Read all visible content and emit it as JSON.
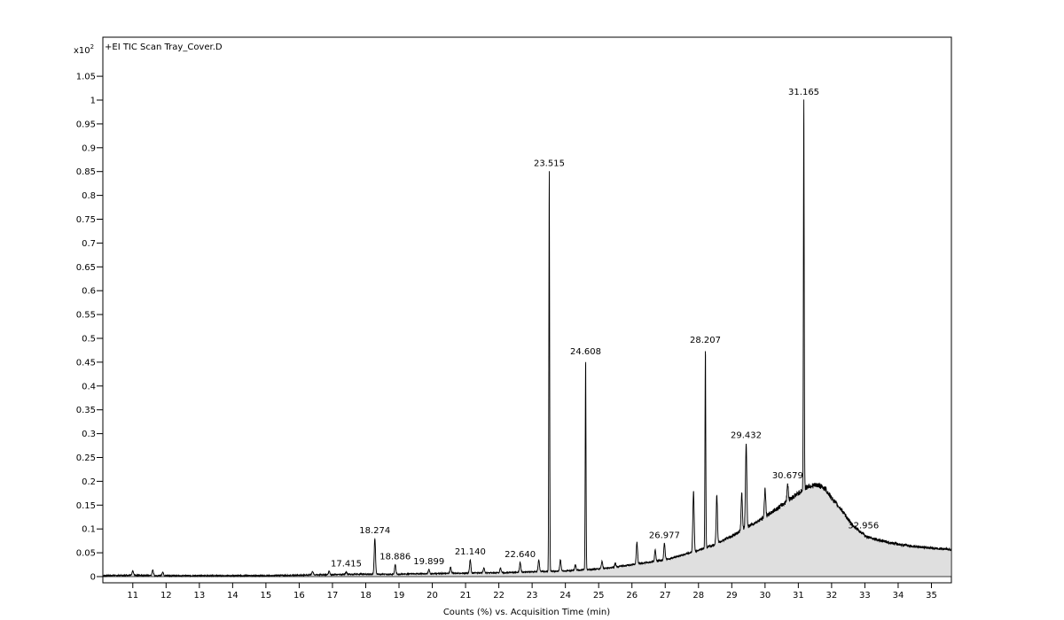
{
  "chart_data": {
    "type": "line",
    "trace_title": "+EI TIC Scan Tray_Cover.D",
    "xlabel": "Counts (%) vs. Acquisition Time (min)",
    "y_multiplier_base": "x10",
    "y_multiplier_exp": "2",
    "xlim": [
      10.1,
      35.6
    ],
    "ylim": [
      0,
      1.1
    ],
    "x_ticks": [
      "11",
      "12",
      "13",
      "14",
      "15",
      "16",
      "17",
      "18",
      "19",
      "20",
      "21",
      "22",
      "23",
      "24",
      "25",
      "26",
      "27",
      "28",
      "29",
      "30",
      "31",
      "32",
      "33",
      "34",
      "35"
    ],
    "y_ticks": [
      "0",
      "0.05",
      "0.1",
      "0.15",
      "0.2",
      "0.25",
      "0.3",
      "0.35",
      "0.4",
      "0.45",
      "0.5",
      "0.55",
      "0.6",
      "0.65",
      "0.7",
      "0.75",
      "0.8",
      "0.85",
      "0.9",
      "0.95",
      "1",
      "1.05"
    ],
    "series": [
      {
        "x": [
          10.1,
          11.0,
          12.0,
          13.0,
          14.0,
          15.0,
          16.0,
          16.5,
          17.0,
          17.5,
          18.0,
          18.5,
          19.0,
          19.5,
          20.0,
          20.5,
          21.0,
          21.5,
          22.0,
          22.5,
          23.0,
          23.5,
          24.0,
          24.5,
          25.0,
          25.5,
          26.0,
          26.5,
          27.0,
          27.5,
          28.0,
          28.5,
          29.0,
          29.5,
          30.0,
          30.5,
          31.0,
          31.3,
          31.6,
          31.8,
          32.0,
          32.3,
          32.6,
          33.0,
          33.5,
          34.0,
          34.5,
          35.0,
          35.6
        ],
        "y": [
          0.002,
          0.003,
          0.002,
          0.002,
          0.002,
          0.002,
          0.003,
          0.004,
          0.004,
          0.005,
          0.005,
          0.005,
          0.005,
          0.006,
          0.006,
          0.007,
          0.007,
          0.008,
          0.008,
          0.009,
          0.01,
          0.011,
          0.012,
          0.014,
          0.016,
          0.02,
          0.025,
          0.03,
          0.035,
          0.045,
          0.055,
          0.068,
          0.085,
          0.105,
          0.125,
          0.15,
          0.175,
          0.19,
          0.192,
          0.185,
          0.165,
          0.14,
          0.11,
          0.085,
          0.075,
          0.068,
          0.063,
          0.06,
          0.057
        ]
      }
    ],
    "peaks": [
      {
        "x": 11.0,
        "y": 0.012
      },
      {
        "x": 11.6,
        "y": 0.014
      },
      {
        "x": 11.9,
        "y": 0.01
      },
      {
        "x": 16.4,
        "y": 0.011
      },
      {
        "x": 16.9,
        "y": 0.012
      },
      {
        "x": 17.415,
        "y": 0.01,
        "label": "17.415"
      },
      {
        "x": 18.274,
        "y": 0.08,
        "label": "18.274"
      },
      {
        "x": 18.886,
        "y": 0.025,
        "label": "18.886"
      },
      {
        "x": 19.899,
        "y": 0.015,
        "label": "19.899"
      },
      {
        "x": 20.55,
        "y": 0.02
      },
      {
        "x": 21.14,
        "y": 0.035,
        "label": "21.140"
      },
      {
        "x": 21.55,
        "y": 0.018
      },
      {
        "x": 22.05,
        "y": 0.018
      },
      {
        "x": 22.64,
        "y": 0.03,
        "label": "22.640"
      },
      {
        "x": 23.2,
        "y": 0.035
      },
      {
        "x": 23.515,
        "y": 0.85,
        "label": "23.515"
      },
      {
        "x": 23.85,
        "y": 0.035
      },
      {
        "x": 24.3,
        "y": 0.025
      },
      {
        "x": 24.608,
        "y": 0.455,
        "label": "24.608"
      },
      {
        "x": 25.1,
        "y": 0.032
      },
      {
        "x": 25.5,
        "y": 0.028
      },
      {
        "x": 26.15,
        "y": 0.072
      },
      {
        "x": 26.7,
        "y": 0.055
      },
      {
        "x": 26.977,
        "y": 0.07,
        "label": "26.977"
      },
      {
        "x": 27.85,
        "y": 0.18
      },
      {
        "x": 28.207,
        "y": 0.48,
        "label": "28.207"
      },
      {
        "x": 28.55,
        "y": 0.17
      },
      {
        "x": 29.3,
        "y": 0.175
      },
      {
        "x": 29.432,
        "y": 0.28,
        "label": "29.432"
      },
      {
        "x": 30.0,
        "y": 0.185
      },
      {
        "x": 30.679,
        "y": 0.195,
        "label": "30.679"
      },
      {
        "x": 31.165,
        "y": 1.0,
        "label": "31.165"
      },
      {
        "x": 32.956,
        "y": 0.09,
        "label": "32.956"
      }
    ]
  }
}
